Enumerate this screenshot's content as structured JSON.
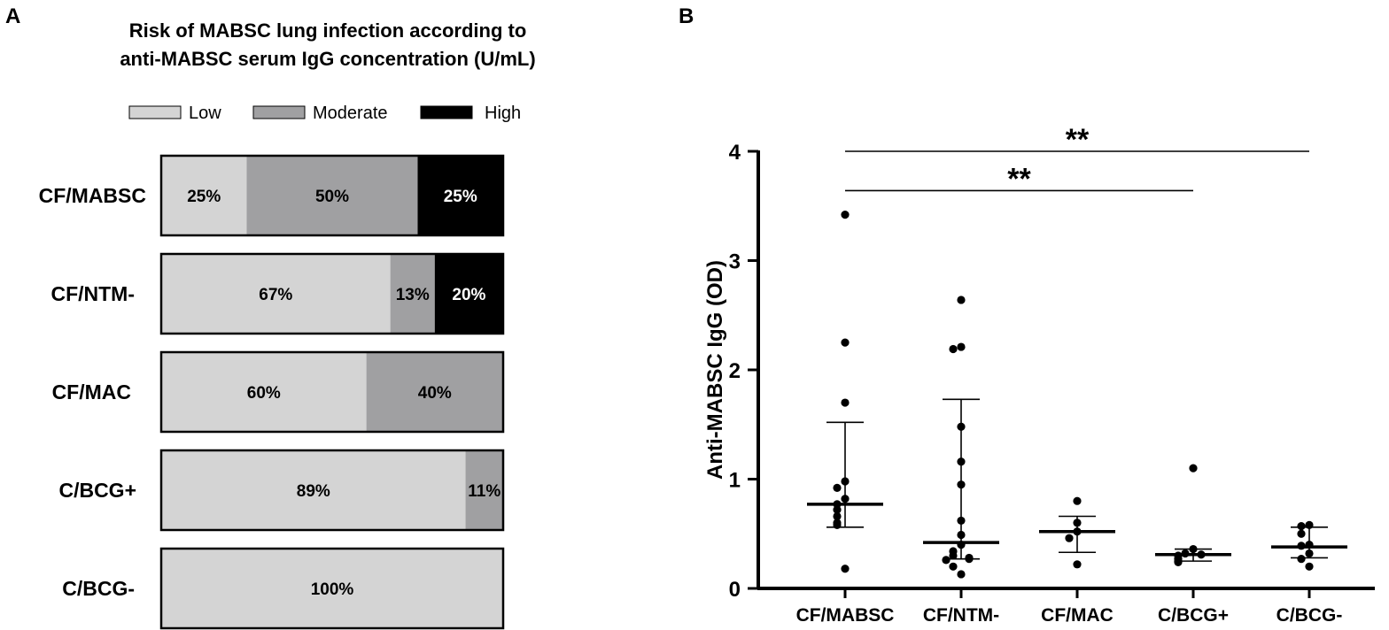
{
  "chart_data": [
    {
      "panel_label": "A",
      "type": "bar",
      "orientation": "horizontal",
      "stacked": true,
      "normalized": true,
      "title_lines": [
        "Risk of MABSC lung infection according to",
        "anti-MABSC serum IgG concentration (U/mL)"
      ],
      "legend": {
        "placement": "top",
        "entries": [
          {
            "name": "Low",
            "color": "#d4d4d4"
          },
          {
            "name": "Moderate",
            "color": "#a0a0a2"
          },
          {
            "name": "High",
            "color": "#000000"
          }
        ]
      },
      "categories": [
        "CF/MABSC",
        "CF/NTM-",
        "CF/MAC",
        "C/BCG+",
        "C/BCG-"
      ],
      "series": [
        {
          "name": "Low",
          "values": [
            25,
            67,
            60,
            89,
            100
          ]
        },
        {
          "name": "Moderate",
          "values": [
            50,
            13,
            40,
            11,
            0
          ]
        },
        {
          "name": "High",
          "values": [
            25,
            20,
            0,
            0,
            0
          ]
        }
      ],
      "segment_labels": [
        [
          "25%",
          "50%",
          "25%"
        ],
        [
          "67%",
          "13%",
          "20%"
        ],
        [
          "60%",
          "40%",
          ""
        ],
        [
          "89%",
          "11%",
          ""
        ],
        [
          "100%",
          "",
          ""
        ]
      ],
      "label_colors": [
        "#000000",
        "#000000",
        "#ffffff"
      ]
    },
    {
      "panel_label": "B",
      "type": "scatter",
      "subtype": "dot-plot with median and interquartile range",
      "ylabel": "Anti-MABSC IgG (OD)",
      "ylim": [
        0,
        4
      ],
      "yticks": [
        0,
        1,
        2,
        3,
        4
      ],
      "categories": [
        "CF/MABSC",
        "CF/NTM-",
        "CF/MAC",
        "C/BCG+",
        "C/BCG-"
      ],
      "points": [
        [
          3.42,
          2.25,
          1.7,
          0.98,
          0.92,
          0.82,
          0.77,
          0.72,
          0.66,
          0.6,
          0.58,
          0.18
        ],
        [
          2.64,
          2.21,
          2.19,
          1.48,
          1.16,
          0.95,
          0.62,
          0.49,
          0.4,
          0.34,
          0.3,
          0.28,
          0.27,
          0.26,
          0.2,
          0.13
        ],
        [
          0.8,
          0.6,
          0.52,
          0.46,
          0.22
        ],
        [
          1.1,
          0.36,
          0.32,
          0.31,
          0.3,
          0.27,
          0.25,
          0.24
        ],
        [
          0.58,
          0.57,
          0.5,
          0.4,
          0.39,
          0.32,
          0.27,
          0.2
        ]
      ],
      "median": [
        0.77,
        0.42,
        0.52,
        0.31,
        0.38
      ],
      "iqr_low": [
        0.56,
        0.27,
        0.33,
        0.25,
        0.28
      ],
      "iqr_high": [
        1.52,
        1.73,
        0.66,
        0.36,
        0.56
      ],
      "significance": [
        {
          "from": "CF/MABSC",
          "to": "C/BCG-",
          "label": "**",
          "level": 4.0
        },
        {
          "from": "CF/MABSC",
          "to": "C/BCG+",
          "label": "**",
          "level": 3.64
        }
      ]
    }
  ]
}
